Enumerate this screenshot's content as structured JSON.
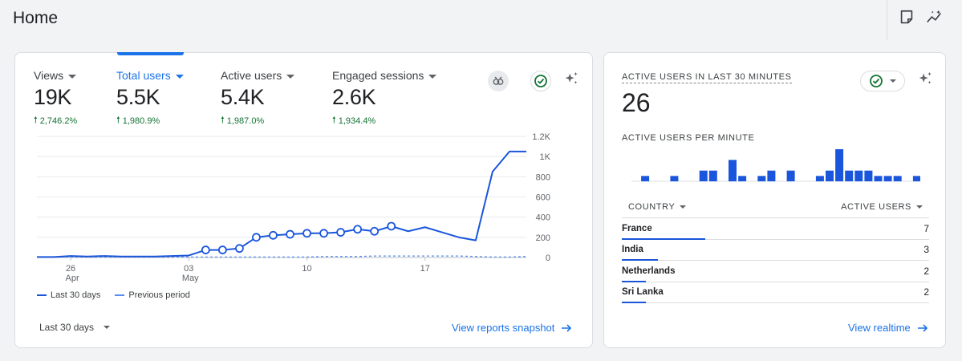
{
  "page": {
    "title": "Home"
  },
  "topbar": {
    "icons": [
      "note-icon",
      "insights-icon"
    ]
  },
  "reports": {
    "metrics": [
      {
        "label": "Views",
        "value": "19K",
        "change": "2,746.2%",
        "active": false
      },
      {
        "label": "Total users",
        "value": "5.5K",
        "change": "1,980.9%",
        "active": true
      },
      {
        "label": "Active users",
        "value": "5.4K",
        "change": "1,987.0%",
        "active": false
      },
      {
        "label": "Engaged sessions",
        "value": "2.6K",
        "change": "1,934.4%",
        "active": false
      }
    ],
    "legend": {
      "current": "Last 30 days",
      "previous": "Previous period"
    },
    "period": "Last 30 days",
    "link": "View reports snapshot"
  },
  "chart_data": {
    "type": "line",
    "x": [
      "Apr 24",
      "Apr 25",
      "Apr 26",
      "Apr 27",
      "Apr 28",
      "Apr 29",
      "Apr 30",
      "May 1",
      "May 2",
      "May 3",
      "May 4",
      "May 5",
      "May 6",
      "May 7",
      "May 8",
      "May 9",
      "May 10",
      "May 11",
      "May 12",
      "May 13",
      "May 14",
      "May 15",
      "May 16",
      "May 17",
      "May 18",
      "May 19",
      "May 20",
      "May 21",
      "May 22",
      "May 23"
    ],
    "x_tick_labels": [
      {
        "day": "26",
        "month": "Apr",
        "index": 2
      },
      {
        "day": "03",
        "month": "May",
        "index": 9
      },
      {
        "day": "10",
        "month": "",
        "index": 16
      },
      {
        "day": "17",
        "month": "",
        "index": 23
      }
    ],
    "y_ticks": [
      "0",
      "200",
      "400",
      "600",
      "800",
      "1K",
      "1.2K"
    ],
    "ylim": [
      0,
      1200
    ],
    "series": [
      {
        "name": "Last 30 days",
        "values": [
          5,
          5,
          15,
          10,
          15,
          10,
          10,
          10,
          15,
          20,
          75,
          75,
          90,
          200,
          220,
          230,
          240,
          240,
          250,
          280,
          260,
          310,
          260,
          300,
          250,
          200,
          170,
          850,
          1050,
          1050
        ],
        "marked": [
          false,
          false,
          false,
          false,
          false,
          false,
          false,
          false,
          false,
          false,
          true,
          true,
          true,
          true,
          true,
          true,
          true,
          true,
          true,
          true,
          true,
          true,
          false,
          false,
          false,
          false,
          false,
          false,
          false,
          false
        ]
      },
      {
        "name": "Previous period",
        "values": [
          5,
          5,
          5,
          5,
          5,
          5,
          5,
          5,
          5,
          5,
          5,
          5,
          5,
          5,
          5,
          5,
          5,
          10,
          10,
          10,
          15,
          15,
          15,
          15,
          15,
          15,
          10,
          5,
          5,
          10
        ]
      }
    ]
  },
  "realtime": {
    "title": "ACTIVE USERS IN LAST 30 MINUTES",
    "value": "26",
    "subtitle": "ACTIVE USERS PER MINUTE",
    "per_minute": [
      0,
      1,
      0,
      0,
      1,
      0,
      0,
      2,
      2,
      0,
      4,
      1,
      0,
      1,
      2,
      0,
      2,
      0,
      0,
      1,
      2,
      6,
      2,
      2,
      2,
      1,
      1,
      1,
      0,
      1,
      1,
      2
    ],
    "table": {
      "col_country": "COUNTRY",
      "col_users": "ACTIVE USERS",
      "rows": [
        {
          "country": "France",
          "users": "7",
          "share": 1.0
        },
        {
          "country": "India",
          "users": "3",
          "share": 0.43
        },
        {
          "country": "Netherlands",
          "users": "2",
          "share": 0.29
        },
        {
          "country": "Sri Lanka",
          "users": "2",
          "share": 0.29
        }
      ]
    },
    "link": "View realtime"
  },
  "colors": {
    "accent": "#1a73e8",
    "line": "#1a56db",
    "positive": "#137333"
  }
}
